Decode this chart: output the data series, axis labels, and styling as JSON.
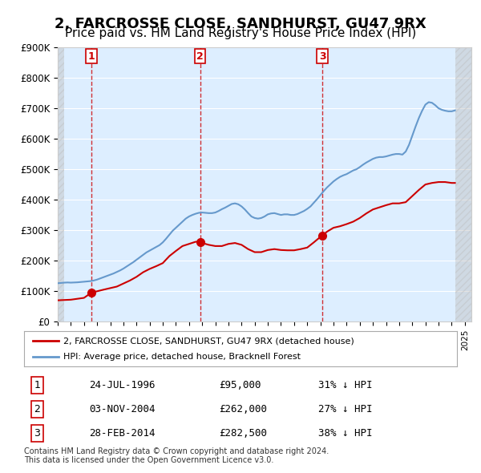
{
  "title": "2, FARCROSSE CLOSE, SANDHURST, GU47 9RX",
  "subtitle": "Price paid vs. HM Land Registry's House Price Index (HPI)",
  "ylabel": "",
  "ylim": [
    0,
    900000
  ],
  "yticks": [
    0,
    100000,
    200000,
    300000,
    400000,
    500000,
    600000,
    700000,
    800000,
    900000
  ],
  "ytick_labels": [
    "£0",
    "£100K",
    "£200K",
    "£300K",
    "£400K",
    "£500K",
    "£600K",
    "£700K",
    "£800K",
    "£900K"
  ],
  "background_color": "#ffffff",
  "plot_bg_color": "#ddeeff",
  "grid_color": "#ffffff",
  "hpi_color": "#6699cc",
  "price_color": "#cc0000",
  "sale_marker_color": "#cc0000",
  "vline_color": "#cc0000",
  "title_fontsize": 13,
  "subtitle_fontsize": 11,
  "legend_label_price": "2, FARCROSSE CLOSE, SANDHURST, GU47 9RX (detached house)",
  "legend_label_hpi": "HPI: Average price, detached house, Bracknell Forest",
  "transactions": [
    {
      "num": 1,
      "date": "24-JUL-1996",
      "price": 95000,
      "pct": "31%",
      "direction": "↓",
      "x_year": 1996.56
    },
    {
      "num": 2,
      "date": "03-NOV-2004",
      "price": 262000,
      "pct": "27%",
      "direction": "↓",
      "x_year": 2004.84
    },
    {
      "num": 3,
      "date": "28-FEB-2014",
      "price": 282500,
      "pct": "38%",
      "direction": "↓",
      "x_year": 2014.16
    }
  ],
  "footer": "Contains HM Land Registry data © Crown copyright and database right 2024.\nThis data is licensed under the Open Government Licence v3.0.",
  "hpi_data": {
    "years": [
      1994.0,
      1994.25,
      1994.5,
      1994.75,
      1995.0,
      1995.25,
      1995.5,
      1995.75,
      1996.0,
      1996.25,
      1996.5,
      1996.75,
      1997.0,
      1997.25,
      1997.5,
      1997.75,
      1998.0,
      1998.25,
      1998.5,
      1998.75,
      1999.0,
      1999.25,
      1999.5,
      1999.75,
      2000.0,
      2000.25,
      2000.5,
      2000.75,
      2001.0,
      2001.25,
      2001.5,
      2001.75,
      2002.0,
      2002.25,
      2002.5,
      2002.75,
      2003.0,
      2003.25,
      2003.5,
      2003.75,
      2004.0,
      2004.25,
      2004.5,
      2004.75,
      2005.0,
      2005.25,
      2005.5,
      2005.75,
      2006.0,
      2006.25,
      2006.5,
      2006.75,
      2007.0,
      2007.25,
      2007.5,
      2007.75,
      2008.0,
      2008.25,
      2008.5,
      2008.75,
      2009.0,
      2009.25,
      2009.5,
      2009.75,
      2010.0,
      2010.25,
      2010.5,
      2010.75,
      2011.0,
      2011.25,
      2011.5,
      2011.75,
      2012.0,
      2012.25,
      2012.5,
      2012.75,
      2013.0,
      2013.25,
      2013.5,
      2013.75,
      2014.0,
      2014.25,
      2014.5,
      2014.75,
      2015.0,
      2015.25,
      2015.5,
      2015.75,
      2016.0,
      2016.25,
      2016.5,
      2016.75,
      2017.0,
      2017.25,
      2017.5,
      2017.75,
      2018.0,
      2018.25,
      2018.5,
      2018.75,
      2019.0,
      2019.25,
      2019.5,
      2019.75,
      2020.0,
      2020.25,
      2020.5,
      2020.75,
      2021.0,
      2021.25,
      2021.5,
      2021.75,
      2022.0,
      2022.25,
      2022.5,
      2022.75,
      2023.0,
      2023.25,
      2023.5,
      2023.75,
      2024.0,
      2024.25
    ],
    "values": [
      126000,
      127000,
      128000,
      128500,
      128000,
      128500,
      129000,
      130000,
      131000,
      132000,
      133000,
      135000,
      138000,
      142000,
      146000,
      150000,
      154000,
      158000,
      163000,
      168000,
      174000,
      181000,
      188000,
      195000,
      203000,
      211000,
      219000,
      227000,
      233000,
      239000,
      245000,
      251000,
      260000,
      272000,
      285000,
      298000,
      308000,
      318000,
      328000,
      338000,
      345000,
      350000,
      354000,
      357000,
      358000,
      357000,
      356000,
      356000,
      358000,
      363000,
      369000,
      374000,
      380000,
      386000,
      388000,
      385000,
      378000,
      368000,
      356000,
      345000,
      340000,
      338000,
      340000,
      345000,
      352000,
      355000,
      356000,
      353000,
      350000,
      352000,
      352000,
      350000,
      350000,
      353000,
      358000,
      363000,
      370000,
      378000,
      390000,
      402000,
      415000,
      428000,
      440000,
      450000,
      460000,
      468000,
      475000,
      480000,
      484000,
      490000,
      496000,
      500000,
      507000,
      515000,
      522000,
      528000,
      534000,
      538000,
      540000,
      540000,
      542000,
      545000,
      548000,
      550000,
      550000,
      548000,
      558000,
      580000,
      610000,
      640000,
      668000,
      692000,
      712000,
      720000,
      718000,
      710000,
      700000,
      695000,
      692000,
      690000,
      690000,
      693000
    ]
  },
  "price_series": {
    "years": [
      1994.0,
      1995.0,
      1996.0,
      1996.56,
      1997.5,
      1998.5,
      1999.0,
      1999.5,
      2000.0,
      2000.5,
      2001.0,
      2001.5,
      2002.0,
      2002.5,
      2003.0,
      2003.5,
      2004.0,
      2004.5,
      2004.84,
      2005.0,
      2005.5,
      2006.0,
      2006.5,
      2007.0,
      2007.5,
      2008.0,
      2008.5,
      2009.0,
      2009.5,
      2010.0,
      2010.5,
      2011.0,
      2011.5,
      2012.0,
      2012.5,
      2013.0,
      2013.5,
      2014.0,
      2014.16,
      2014.5,
      2015.0,
      2015.5,
      2016.0,
      2016.5,
      2017.0,
      2017.5,
      2018.0,
      2018.5,
      2019.0,
      2019.5,
      2020.0,
      2020.5,
      2021.0,
      2021.5,
      2022.0,
      2022.5,
      2023.0,
      2023.5,
      2024.0,
      2024.25
    ],
    "values": [
      70000,
      72000,
      78000,
      95000,
      105000,
      115000,
      125000,
      135000,
      147000,
      162000,
      173000,
      182000,
      192000,
      215000,
      232000,
      248000,
      255000,
      262000,
      262000,
      258000,
      252000,
      248000,
      248000,
      255000,
      258000,
      252000,
      238000,
      228000,
      228000,
      235000,
      238000,
      235000,
      234000,
      234000,
      238000,
      243000,
      260000,
      278000,
      282500,
      295000,
      308000,
      313000,
      320000,
      328000,
      340000,
      355000,
      368000,
      375000,
      382000,
      388000,
      388000,
      392000,
      412000,
      432000,
      450000,
      455000,
      458000,
      458000,
      455000,
      455000
    ]
  },
  "xlim": [
    1994.0,
    2025.5
  ],
  "xticks": [
    1994,
    1995,
    1996,
    1997,
    1998,
    1999,
    2000,
    2001,
    2002,
    2003,
    2004,
    2005,
    2006,
    2007,
    2008,
    2009,
    2010,
    2011,
    2012,
    2013,
    2014,
    2015,
    2016,
    2017,
    2018,
    2019,
    2020,
    2021,
    2022,
    2023,
    2024,
    2025
  ]
}
